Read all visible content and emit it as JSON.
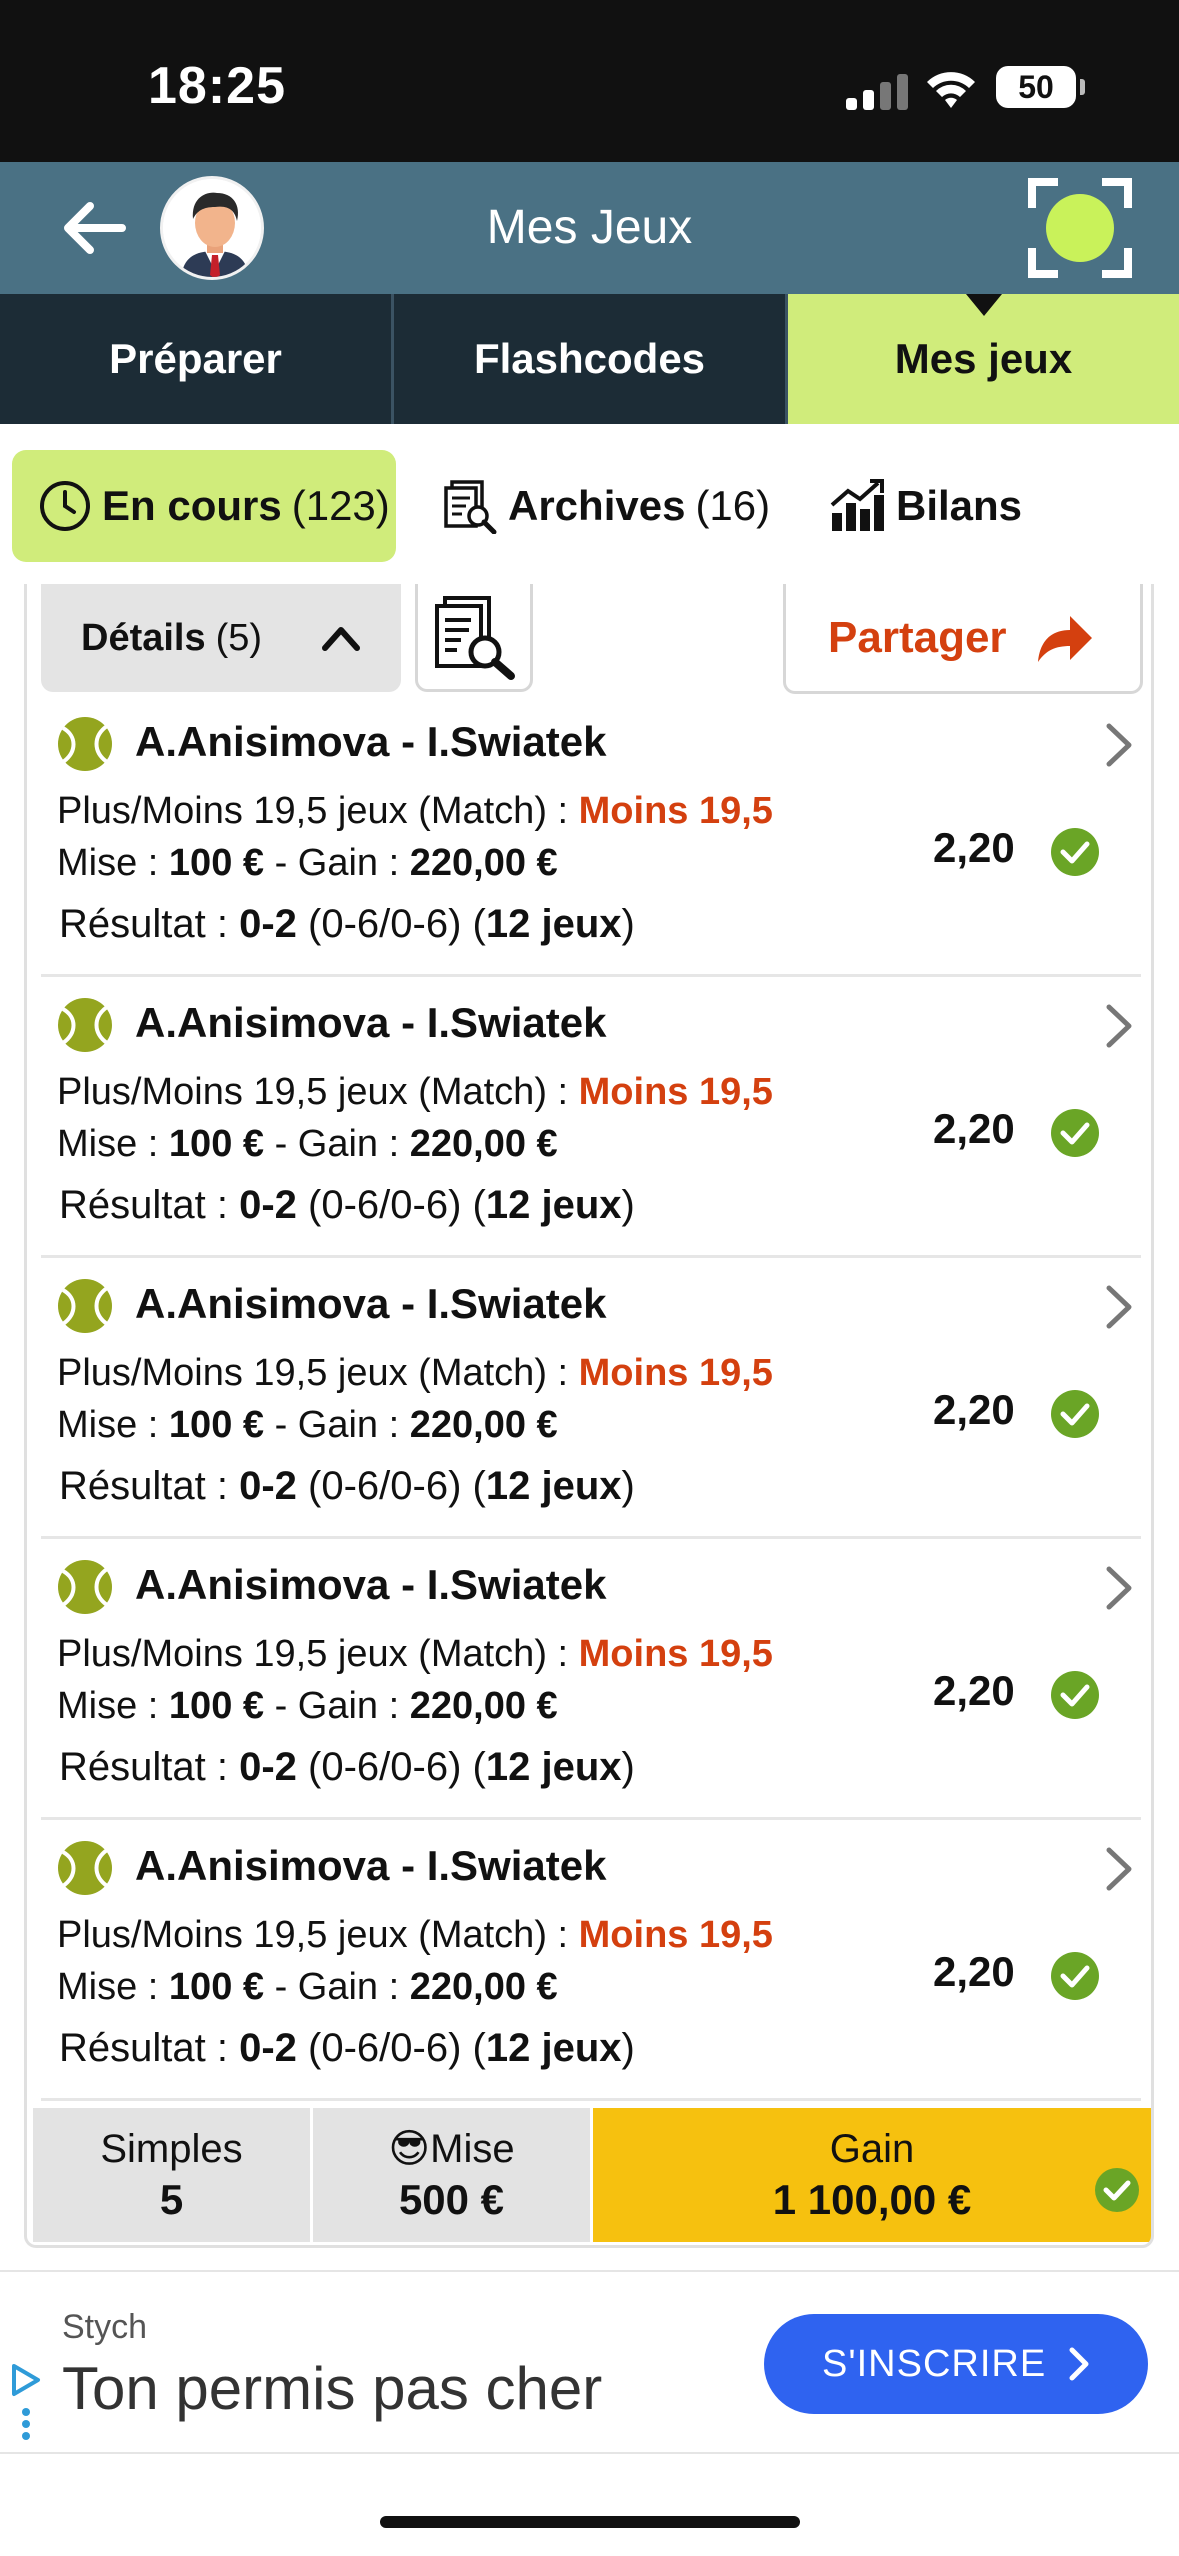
{
  "status": {
    "time": "18:25",
    "battery": "50"
  },
  "header": {
    "title": "Mes Jeux"
  },
  "main_tabs": [
    {
      "label": "Préparer"
    },
    {
      "label": "Flashcodes"
    },
    {
      "label": "Mes jeux"
    }
  ],
  "sub_tabs": {
    "en_cours": {
      "label": "En cours",
      "count": "(123)"
    },
    "archives": {
      "label": "Archives",
      "count": "(16)"
    },
    "bilans": {
      "label": "Bilans"
    }
  },
  "toolbar": {
    "details_label": "Détails",
    "details_count": "(5)",
    "share_label": "Partager"
  },
  "bets": [
    {
      "match": "A.Anisimova - I.Swiatek",
      "market": "Plus/Moins 19,5 jeux (Match) :",
      "pick": "Moins 19,5",
      "stake_label": "Mise :",
      "stake": "100 €",
      "gain_label": "- Gain :",
      "gain": "220,00 €",
      "result_label": "Résultat :",
      "score": "0-2",
      "sets": "(0-6/0-6)",
      "games": "12 jeux",
      "odds": "2,20"
    },
    {
      "match": "A.Anisimova - I.Swiatek",
      "market": "Plus/Moins 19,5 jeux (Match) :",
      "pick": "Moins 19,5",
      "stake_label": "Mise :",
      "stake": "100 €",
      "gain_label": "- Gain :",
      "gain": "220,00 €",
      "result_label": "Résultat :",
      "score": "0-2",
      "sets": "(0-6/0-6)",
      "games": "12 jeux",
      "odds": "2,20"
    },
    {
      "match": "A.Anisimova - I.Swiatek",
      "market": "Plus/Moins 19,5 jeux (Match) :",
      "pick": "Moins 19,5",
      "stake_label": "Mise :",
      "stake": "100 €",
      "gain_label": "- Gain :",
      "gain": "220,00 €",
      "result_label": "Résultat :",
      "score": "0-2",
      "sets": "(0-6/0-6)",
      "games": "12 jeux",
      "odds": "2,20"
    },
    {
      "match": "A.Anisimova - I.Swiatek",
      "market": "Plus/Moins 19,5 jeux (Match) :",
      "pick": "Moins 19,5",
      "stake_label": "Mise :",
      "stake": "100 €",
      "gain_label": "- Gain :",
      "gain": "220,00 €",
      "result_label": "Résultat :",
      "score": "0-2",
      "sets": "(0-6/0-6)",
      "games": "12 jeux",
      "odds": "2,20"
    },
    {
      "match": "A.Anisimova - I.Swiatek",
      "market": "Plus/Moins 19,5 jeux (Match) :",
      "pick": "Moins 19,5",
      "stake_label": "Mise :",
      "stake": "100 €",
      "gain_label": "- Gain :",
      "gain": "220,00 €",
      "result_label": "Résultat :",
      "score": "0-2",
      "sets": "(0-6/0-6)",
      "games": "12 jeux",
      "odds": "2,20"
    }
  ],
  "summary": {
    "simples_label": "Simples",
    "simples_value": "5",
    "mise_emoji": "😎",
    "mise_label": "Mise",
    "mise_value": "500 €",
    "gain_label": "Gain",
    "gain_value": "1 100,00 €"
  },
  "ad": {
    "brand": "Stych",
    "headline": "Ton permis pas cher",
    "cta": "S'INSCRIRE"
  },
  "colors": {
    "header": "#4a7184",
    "tabs": "#1c2c36",
    "accent": "#d0ec7b",
    "pick": "#d4400f",
    "check": "#6aa526",
    "gain": "#f6c10f",
    "cta": "#2f63f0"
  }
}
